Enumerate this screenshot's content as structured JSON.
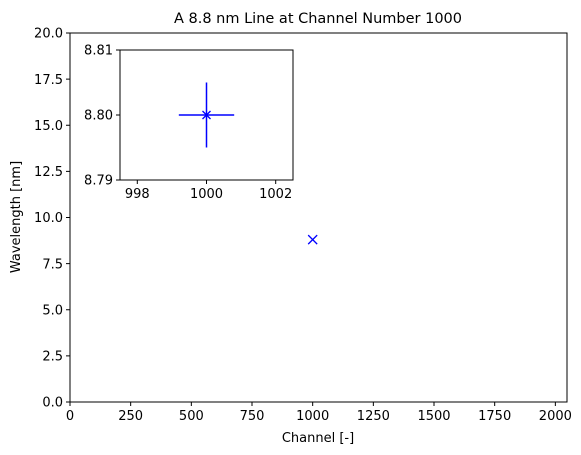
{
  "chart_data": [
    {
      "type": "scatter",
      "title": "A 8.8 nm Line at Channel Number 1000",
      "xlabel": "Channel [-]",
      "ylabel": "Wavelength [nm]",
      "xlim": [
        0,
        2048
      ],
      "ylim": [
        0,
        20
      ],
      "x_ticks": [
        "0",
        "250",
        "500",
        "750",
        "1000",
        "1250",
        "1500",
        "1750",
        "2000"
      ],
      "y_ticks": [
        "0.0",
        "2.5",
        "5.0",
        "7.5",
        "10.0",
        "12.5",
        "15.0",
        "17.5",
        "20.0"
      ],
      "series": [
        {
          "x": [
            1000
          ],
          "y": [
            8.8
          ],
          "marker": "x",
          "color": "#0000ff"
        }
      ],
      "grid": false
    },
    {
      "type": "scatter",
      "inset": true,
      "inset_position": "top-left",
      "xlim": [
        997.5,
        1002.5
      ],
      "ylim": [
        8.79,
        8.81
      ],
      "x_ticks": [
        "998",
        "1000",
        "1002"
      ],
      "y_ticks": [
        "8.79",
        "8.80",
        "8.81"
      ],
      "series": [
        {
          "x": [
            1000
          ],
          "y": [
            8.8
          ],
          "xerr": 0.8,
          "yerr": 0.005,
          "marker": "x",
          "color": "#0000ff"
        }
      ],
      "grid": false
    }
  ]
}
